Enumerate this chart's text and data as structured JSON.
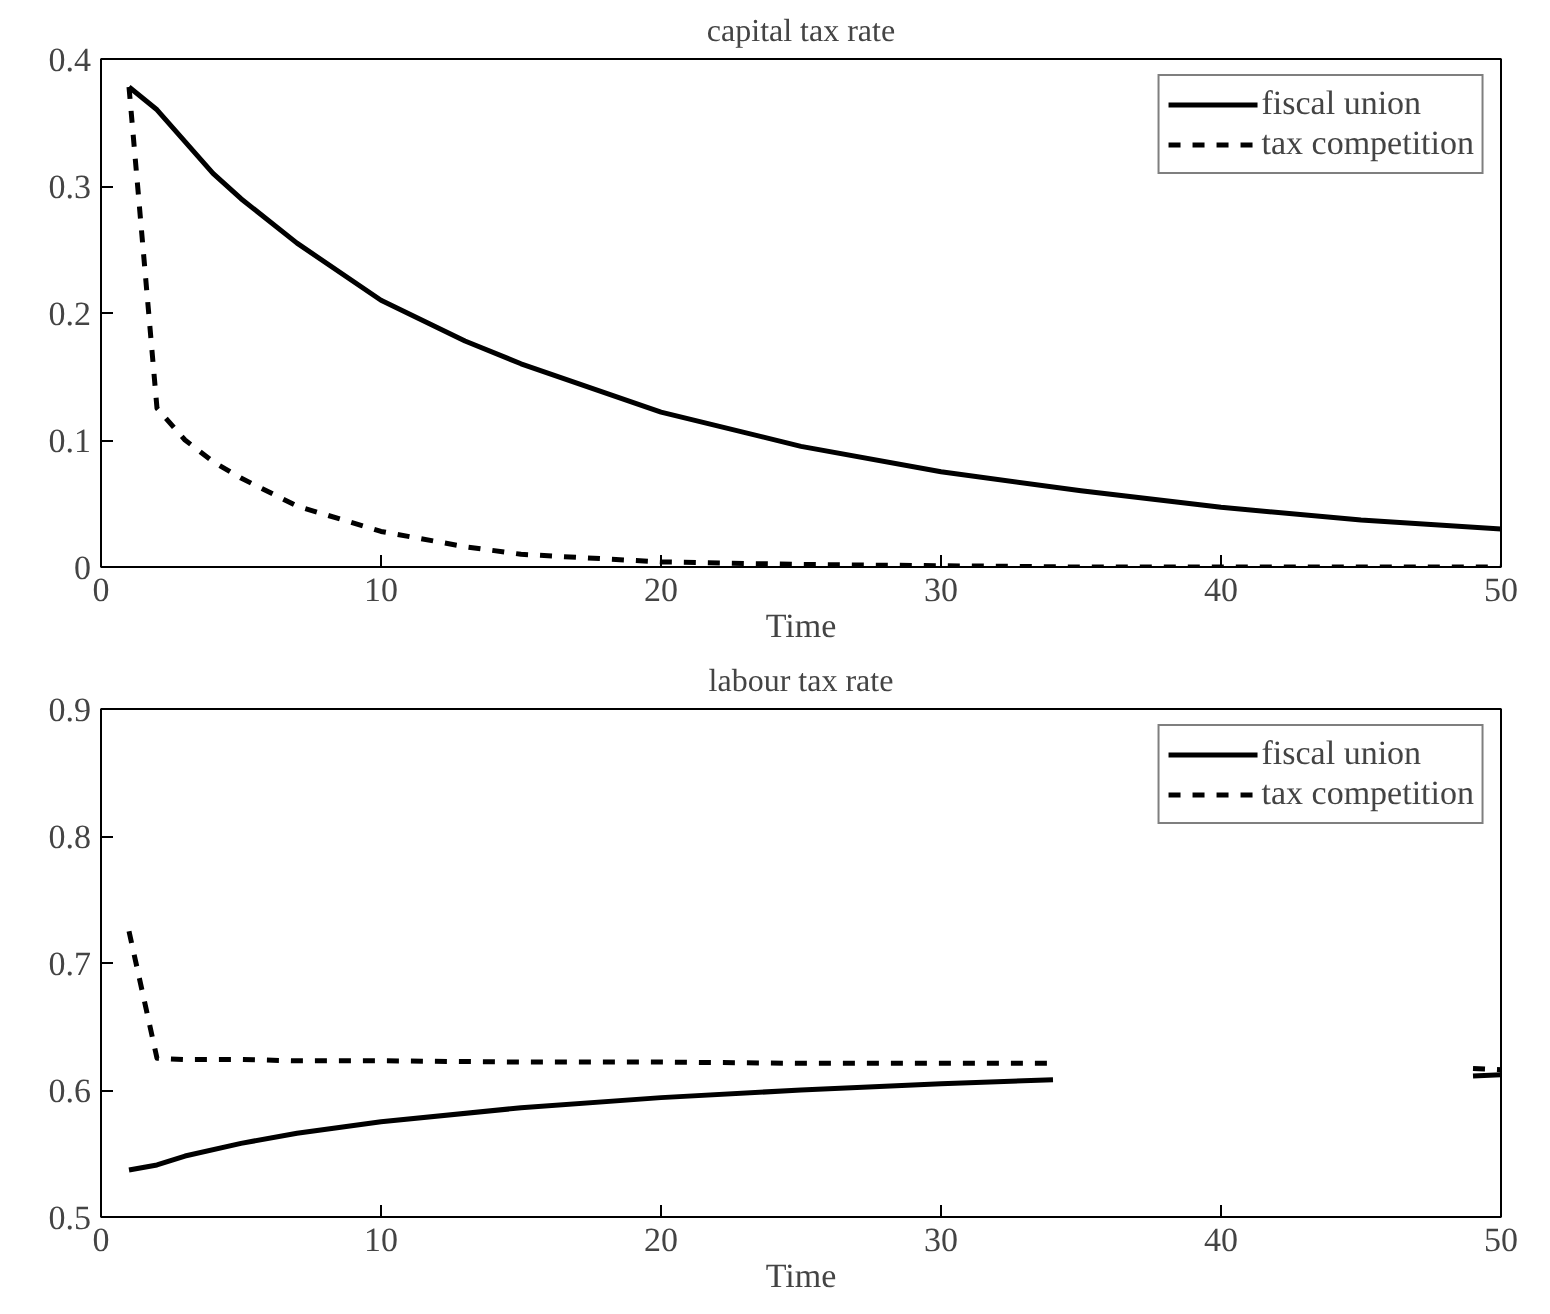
{
  "chart_data": [
    {
      "type": "line",
      "title": "capital tax rate",
      "xlabel": "Time",
      "x": [
        1,
        2,
        3,
        4,
        5,
        7,
        10,
        13,
        15,
        20,
        25,
        30,
        35,
        40,
        45,
        50
      ],
      "series": [
        {
          "name": "fiscal union",
          "color": "#000000",
          "line_style": "solid",
          "values": [
            0.378,
            0.36,
            0.335,
            0.31,
            0.29,
            0.255,
            0.21,
            0.178,
            0.16,
            0.122,
            0.095,
            0.075,
            0.06,
            0.047,
            0.037,
            0.03
          ]
        },
        {
          "name": "tax competition",
          "color": "#000000",
          "line_style": "dashed",
          "values": [
            0.378,
            0.125,
            0.1,
            0.083,
            0.07,
            0.048,
            0.028,
            0.016,
            0.01,
            0.004,
            0.002,
            0.001,
            0.0,
            0.0,
            0.0,
            0.0
          ]
        }
      ],
      "xlim": [
        0,
        50
      ],
      "ylim": [
        0,
        0.4
      ],
      "xticks": [
        0,
        10,
        20,
        30,
        40,
        50
      ],
      "yticks": [
        0,
        0.1,
        0.2,
        0.3,
        0.4
      ],
      "grid": false,
      "legend": "top right",
      "marker": "none"
    },
    {
      "type": "line",
      "title": "labour tax rate",
      "xlabel": "Time",
      "x": [
        1,
        2,
        3,
        5,
        7,
        10,
        15,
        20,
        25,
        30,
        34,
        40,
        49,
        50
      ],
      "series": [
        {
          "name": "fiscal union",
          "color": "#000000",
          "line_style": "solid",
          "values": [
            0.537,
            0.541,
            0.548,
            0.558,
            0.566,
            0.575,
            0.586,
            0.594,
            0.6,
            0.605,
            0.608,
            null,
            0.611,
            0.612
          ]
        },
        {
          "name": "tax competition",
          "color": "#000000",
          "line_style": "dashed",
          "values": [
            0.725,
            0.625,
            0.624,
            0.624,
            0.623,
            0.623,
            0.622,
            0.622,
            0.621,
            0.621,
            0.621,
            null,
            0.617,
            0.616
          ]
        }
      ],
      "xlim": [
        0,
        50
      ],
      "ylim": [
        0.5,
        0.9
      ],
      "xticks": [
        0,
        10,
        20,
        30,
        40,
        50
      ],
      "yticks": [
        0.5,
        0.6,
        0.7,
        0.8,
        0.9
      ],
      "grid": false,
      "legend": "top right",
      "marker": "none"
    }
  ]
}
